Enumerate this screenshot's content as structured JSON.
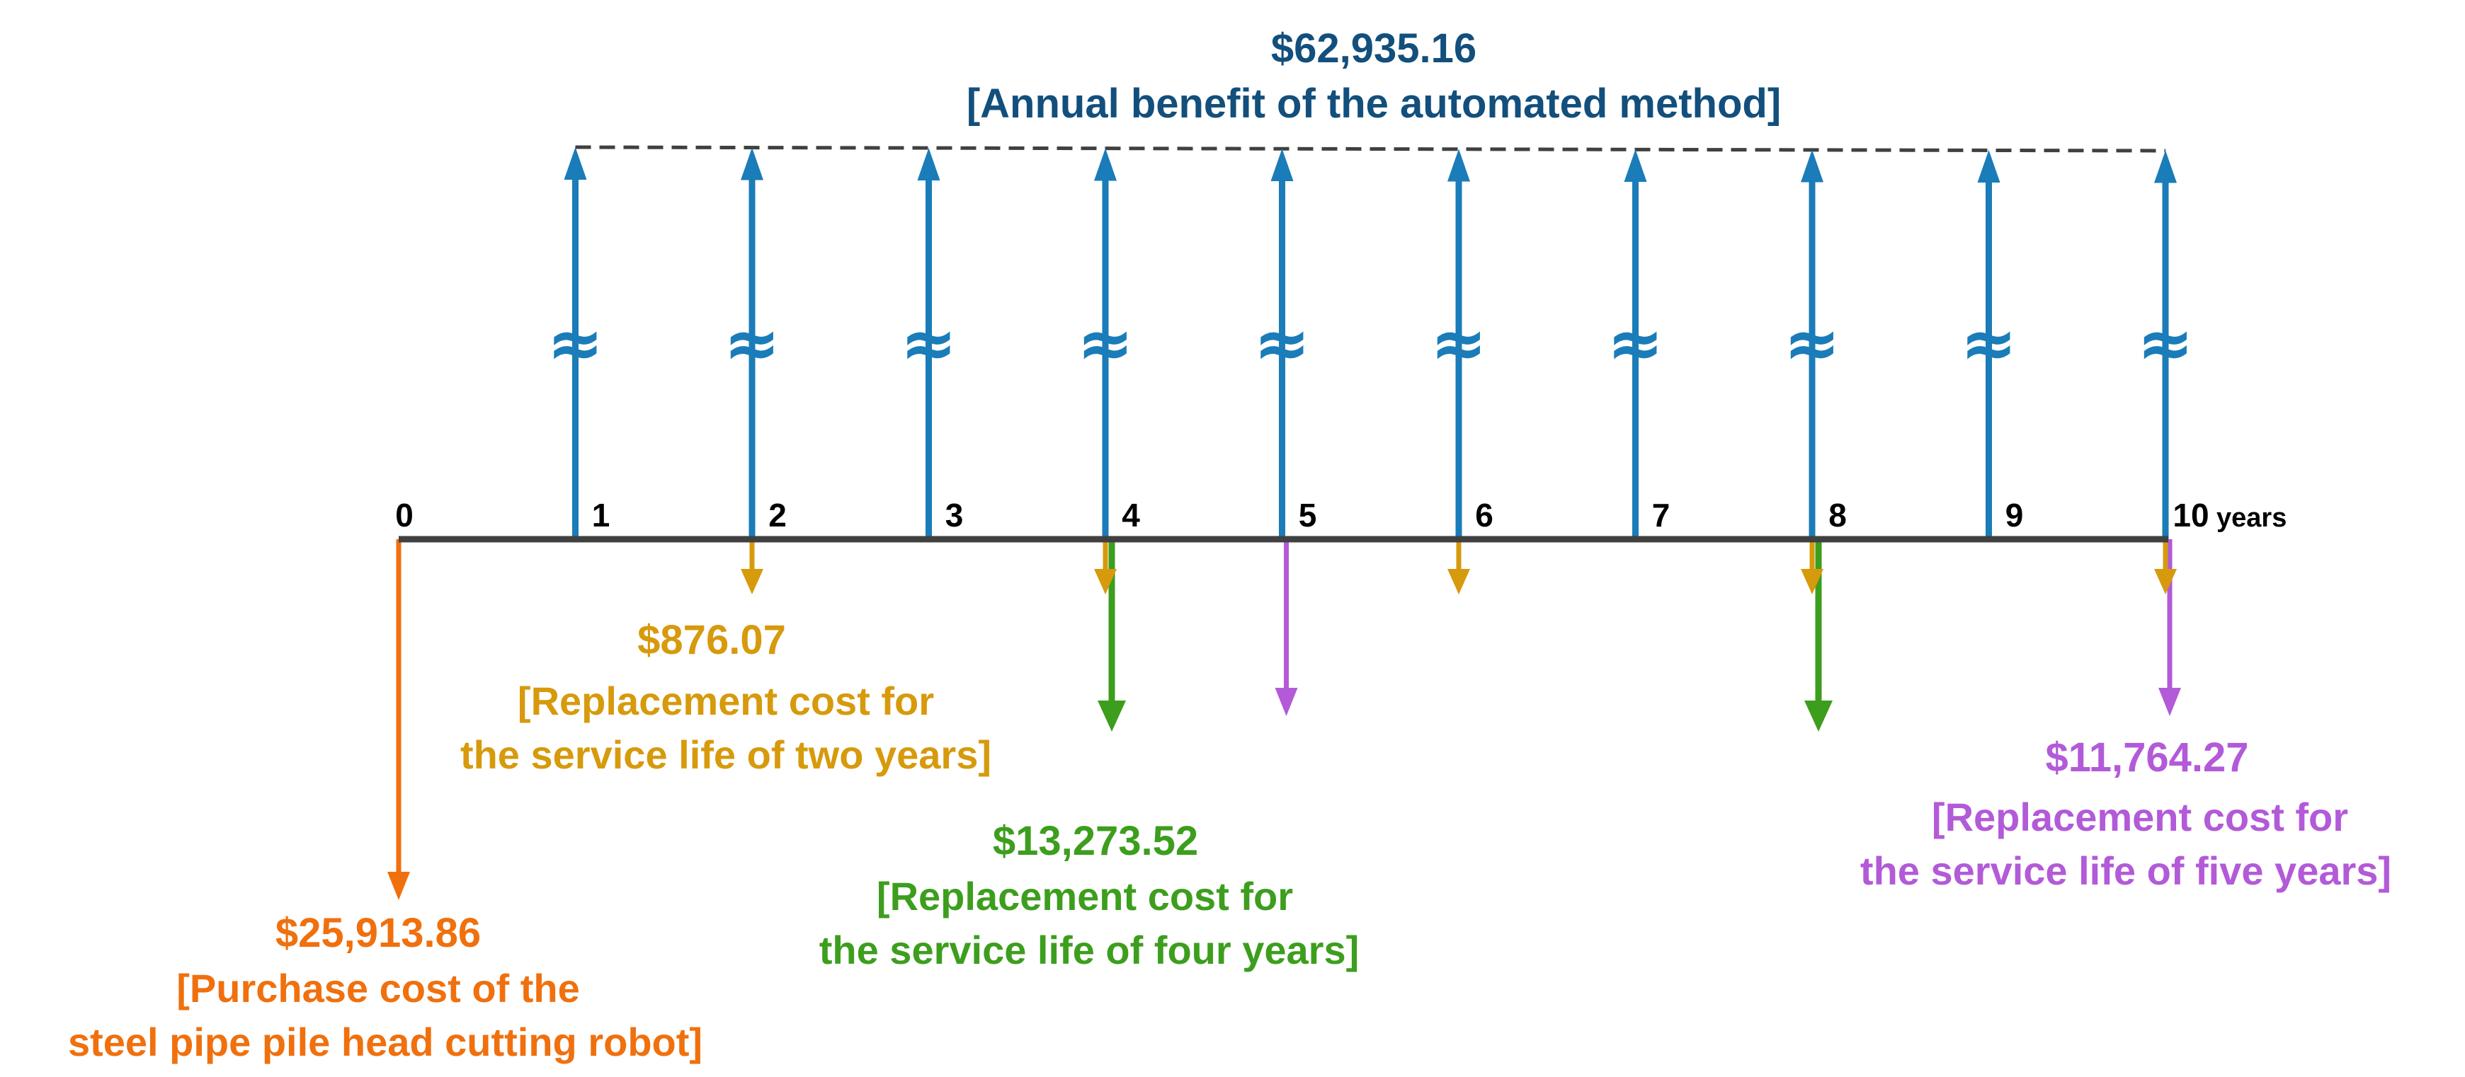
{
  "colors": {
    "benefit": "#1a7cb8",
    "benefit_text": "#124f7c",
    "purchase": "#f0700e",
    "two_year": "#d69a0c",
    "four_year": "#3d9e1e",
    "five_year": "#b25ad8",
    "axis": "#404040"
  },
  "timeline": {
    "tick_labels": [
      "0",
      "1",
      "2",
      "3",
      "4",
      "5",
      "6",
      "7",
      "8",
      "9",
      "10"
    ],
    "unit_label": "years",
    "break_symbol": "≈"
  },
  "cash_flows": {
    "benefit": {
      "amount": "$62,935.16",
      "description": "[Annual benefit of the automated method]",
      "years": [
        1,
        2,
        3,
        4,
        5,
        6,
        7,
        8,
        9,
        10
      ],
      "direction": "up"
    },
    "purchase": {
      "amount": "$25,913.86",
      "description_lines": [
        "[Purchase cost of the",
        "steel pipe pile head cutting robot]"
      ],
      "years": [
        0
      ],
      "direction": "down"
    },
    "two_year_replacement": {
      "amount": "$876.07",
      "description_lines": [
        "[Replacement cost for",
        "the service life of two years]"
      ],
      "years": [
        2,
        4,
        6,
        8,
        10
      ],
      "direction": "down"
    },
    "four_year_replacement": {
      "amount": "$13,273.52",
      "description_lines": [
        "[Replacement cost for",
        "the service life of four years]"
      ],
      "years": [
        4,
        8
      ],
      "direction": "down"
    },
    "five_year_replacement": {
      "amount": "$11,764.27",
      "description_lines": [
        "[Replacement cost for",
        "the service life of five years]"
      ],
      "years": [
        5,
        10
      ],
      "direction": "down"
    }
  }
}
